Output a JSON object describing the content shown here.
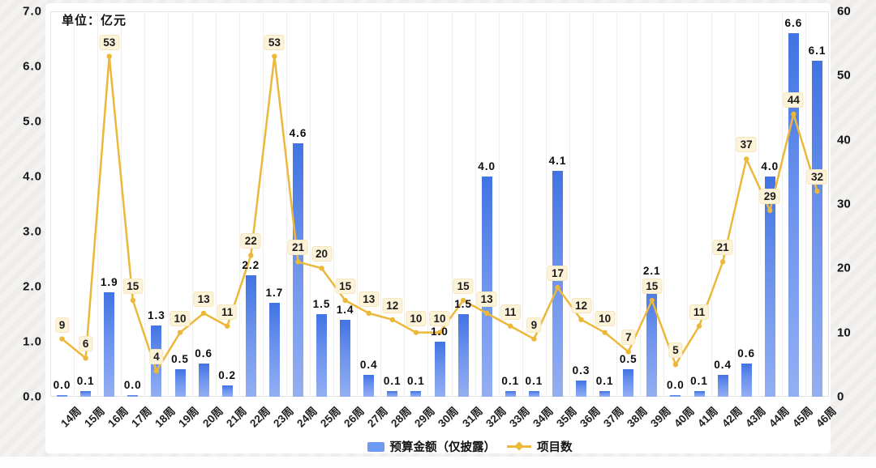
{
  "title": "单位：亿元",
  "colors": {
    "bar_top": "#4273e3",
    "bar_bottom": "#93aff3",
    "line": "#ecb83a",
    "label_box_bg": "#fcf3d8",
    "label_box_border": "#f5e6bd",
    "legend_swatch": "#6d9bf1"
  },
  "left_axis": {
    "ticks": [
      "0.0",
      "1.0",
      "2.0",
      "3.0",
      "4.0",
      "5.0",
      "6.0",
      "7.0"
    ],
    "min": 0,
    "max": 7
  },
  "right_axis": {
    "ticks": [
      "0",
      "10",
      "20",
      "30",
      "40",
      "50",
      "60"
    ],
    "min": 0,
    "max": 60
  },
  "legend": [
    {
      "label": "预算金额（仅披露）",
      "marker": "bar"
    },
    {
      "label": "项目数",
      "marker": "line"
    }
  ],
  "chart_data": {
    "type": "combo-bar-line",
    "title": "单位：亿元",
    "categories": [
      "14周",
      "15周",
      "16周",
      "17周",
      "18周",
      "19周",
      "20周",
      "21周",
      "22周",
      "23周",
      "24周",
      "25周",
      "26周",
      "27周",
      "28周",
      "29周",
      "30周",
      "31周",
      "32周",
      "33周",
      "34周",
      "35周",
      "36周",
      "37周",
      "38周",
      "39周",
      "40周",
      "41周",
      "42周",
      "43周",
      "44周",
      "45周",
      "46周"
    ],
    "series": [
      {
        "name": "预算金额（仅披露）",
        "type": "bar",
        "axis": "left",
        "values": [
          0.0,
          0.1,
          1.9,
          0.0,
          1.3,
          0.5,
          0.6,
          0.2,
          2.2,
          1.7,
          4.6,
          1.5,
          1.4,
          0.4,
          0.1,
          0.1,
          1.0,
          1.5,
          4.0,
          0.1,
          0.1,
          4.1,
          0.3,
          0.1,
          0.5,
          2.1,
          0.0,
          0.1,
          0.4,
          0.6,
          4.0,
          6.6,
          6.1
        ],
        "labels": [
          "0.0",
          "0.1",
          "1.9",
          "0.0",
          "1.3",
          "0.5",
          "0.6",
          "0.2",
          "2.2",
          "1.7",
          "4.6",
          "1.5",
          "1.4",
          "0.4",
          "0.1",
          "0.1",
          "1.0",
          "1.5",
          "4.0",
          "0.1",
          "0.1",
          "4.1",
          "0.3",
          "0.1",
          "0.5",
          "2.1",
          "0.0",
          "0.1",
          "0.4",
          "0.6",
          "4.0",
          "6.6",
          "6.1"
        ]
      },
      {
        "name": "项目数",
        "type": "line",
        "axis": "right",
        "values": [
          9,
          6,
          53,
          15,
          4,
          10,
          13,
          11,
          22,
          53,
          21,
          20,
          15,
          13,
          12,
          10,
          10,
          15,
          13,
          11,
          9,
          17,
          12,
          10,
          7,
          15,
          5,
          11,
          21,
          37,
          29,
          44,
          32
        ]
      }
    ],
    "left_ylim": [
      0,
      7
    ],
    "right_ylim": [
      0,
      60
    ],
    "grid": "vertical-only",
    "legend_position": "bottom"
  }
}
